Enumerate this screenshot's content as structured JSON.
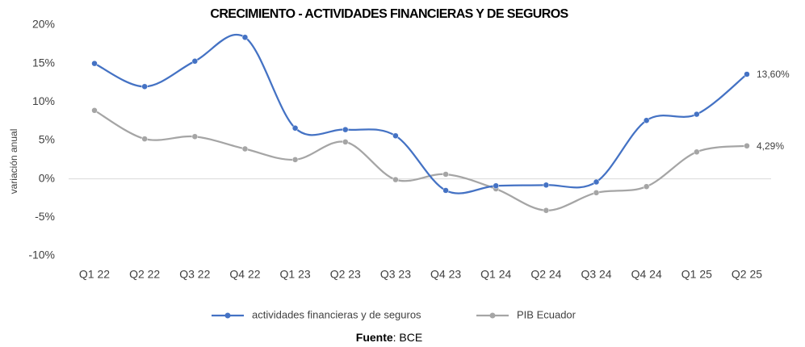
{
  "chart_data": {
    "type": "line",
    "title": "CRECIMIENTO - ACTIVIDADES FINANCIERAS Y DE SEGUROS",
    "y_label": "variación anual",
    "categories": [
      "Q1 22",
      "Q2 22",
      "Q3 22",
      "Q4 22",
      "Q1 23",
      "Q2 23",
      "Q3 23",
      "Q4 23",
      "Q1 24",
      "Q2 24",
      "Q3 24",
      "Q4 24",
      "Q1 25",
      "Q2 25"
    ],
    "series": [
      {
        "name": "actividades financieras y de seguros",
        "color": "#4472c4",
        "values": [
          15.0,
          12.0,
          15.3,
          18.4,
          6.6,
          6.4,
          5.6,
          -1.5,
          -0.9,
          -0.8,
          -0.4,
          7.6,
          8.4,
          13.6
        ],
        "value_labels": [
          null,
          null,
          null,
          null,
          null,
          null,
          null,
          null,
          null,
          null,
          null,
          null,
          null,
          "13,60%"
        ]
      },
      {
        "name": "PIB Ecuador",
        "color": "#a5a5a5",
        "values": [
          8.9,
          5.2,
          5.5,
          3.9,
          2.5,
          4.8,
          -0.1,
          0.6,
          -1.3,
          -4.1,
          -1.8,
          -1.0,
          3.5,
          4.29
        ],
        "value_labels": [
          null,
          null,
          null,
          null,
          null,
          null,
          null,
          null,
          null,
          null,
          null,
          null,
          null,
          "4,29%"
        ]
      }
    ],
    "ylim": [
      -10,
      20
    ],
    "yticks": [
      {
        "value": -10,
        "label": "-10%"
      },
      {
        "value": -5,
        "label": "-5%"
      },
      {
        "value": 0,
        "label": "0%"
      },
      {
        "value": 5,
        "label": "5%"
      },
      {
        "value": 10,
        "label": "10%"
      },
      {
        "value": 15,
        "label": "15%"
      },
      {
        "value": 20,
        "label": "20%"
      }
    ],
    "legend": "bottom",
    "source_label": "Fuente",
    "source": ": BCE"
  }
}
